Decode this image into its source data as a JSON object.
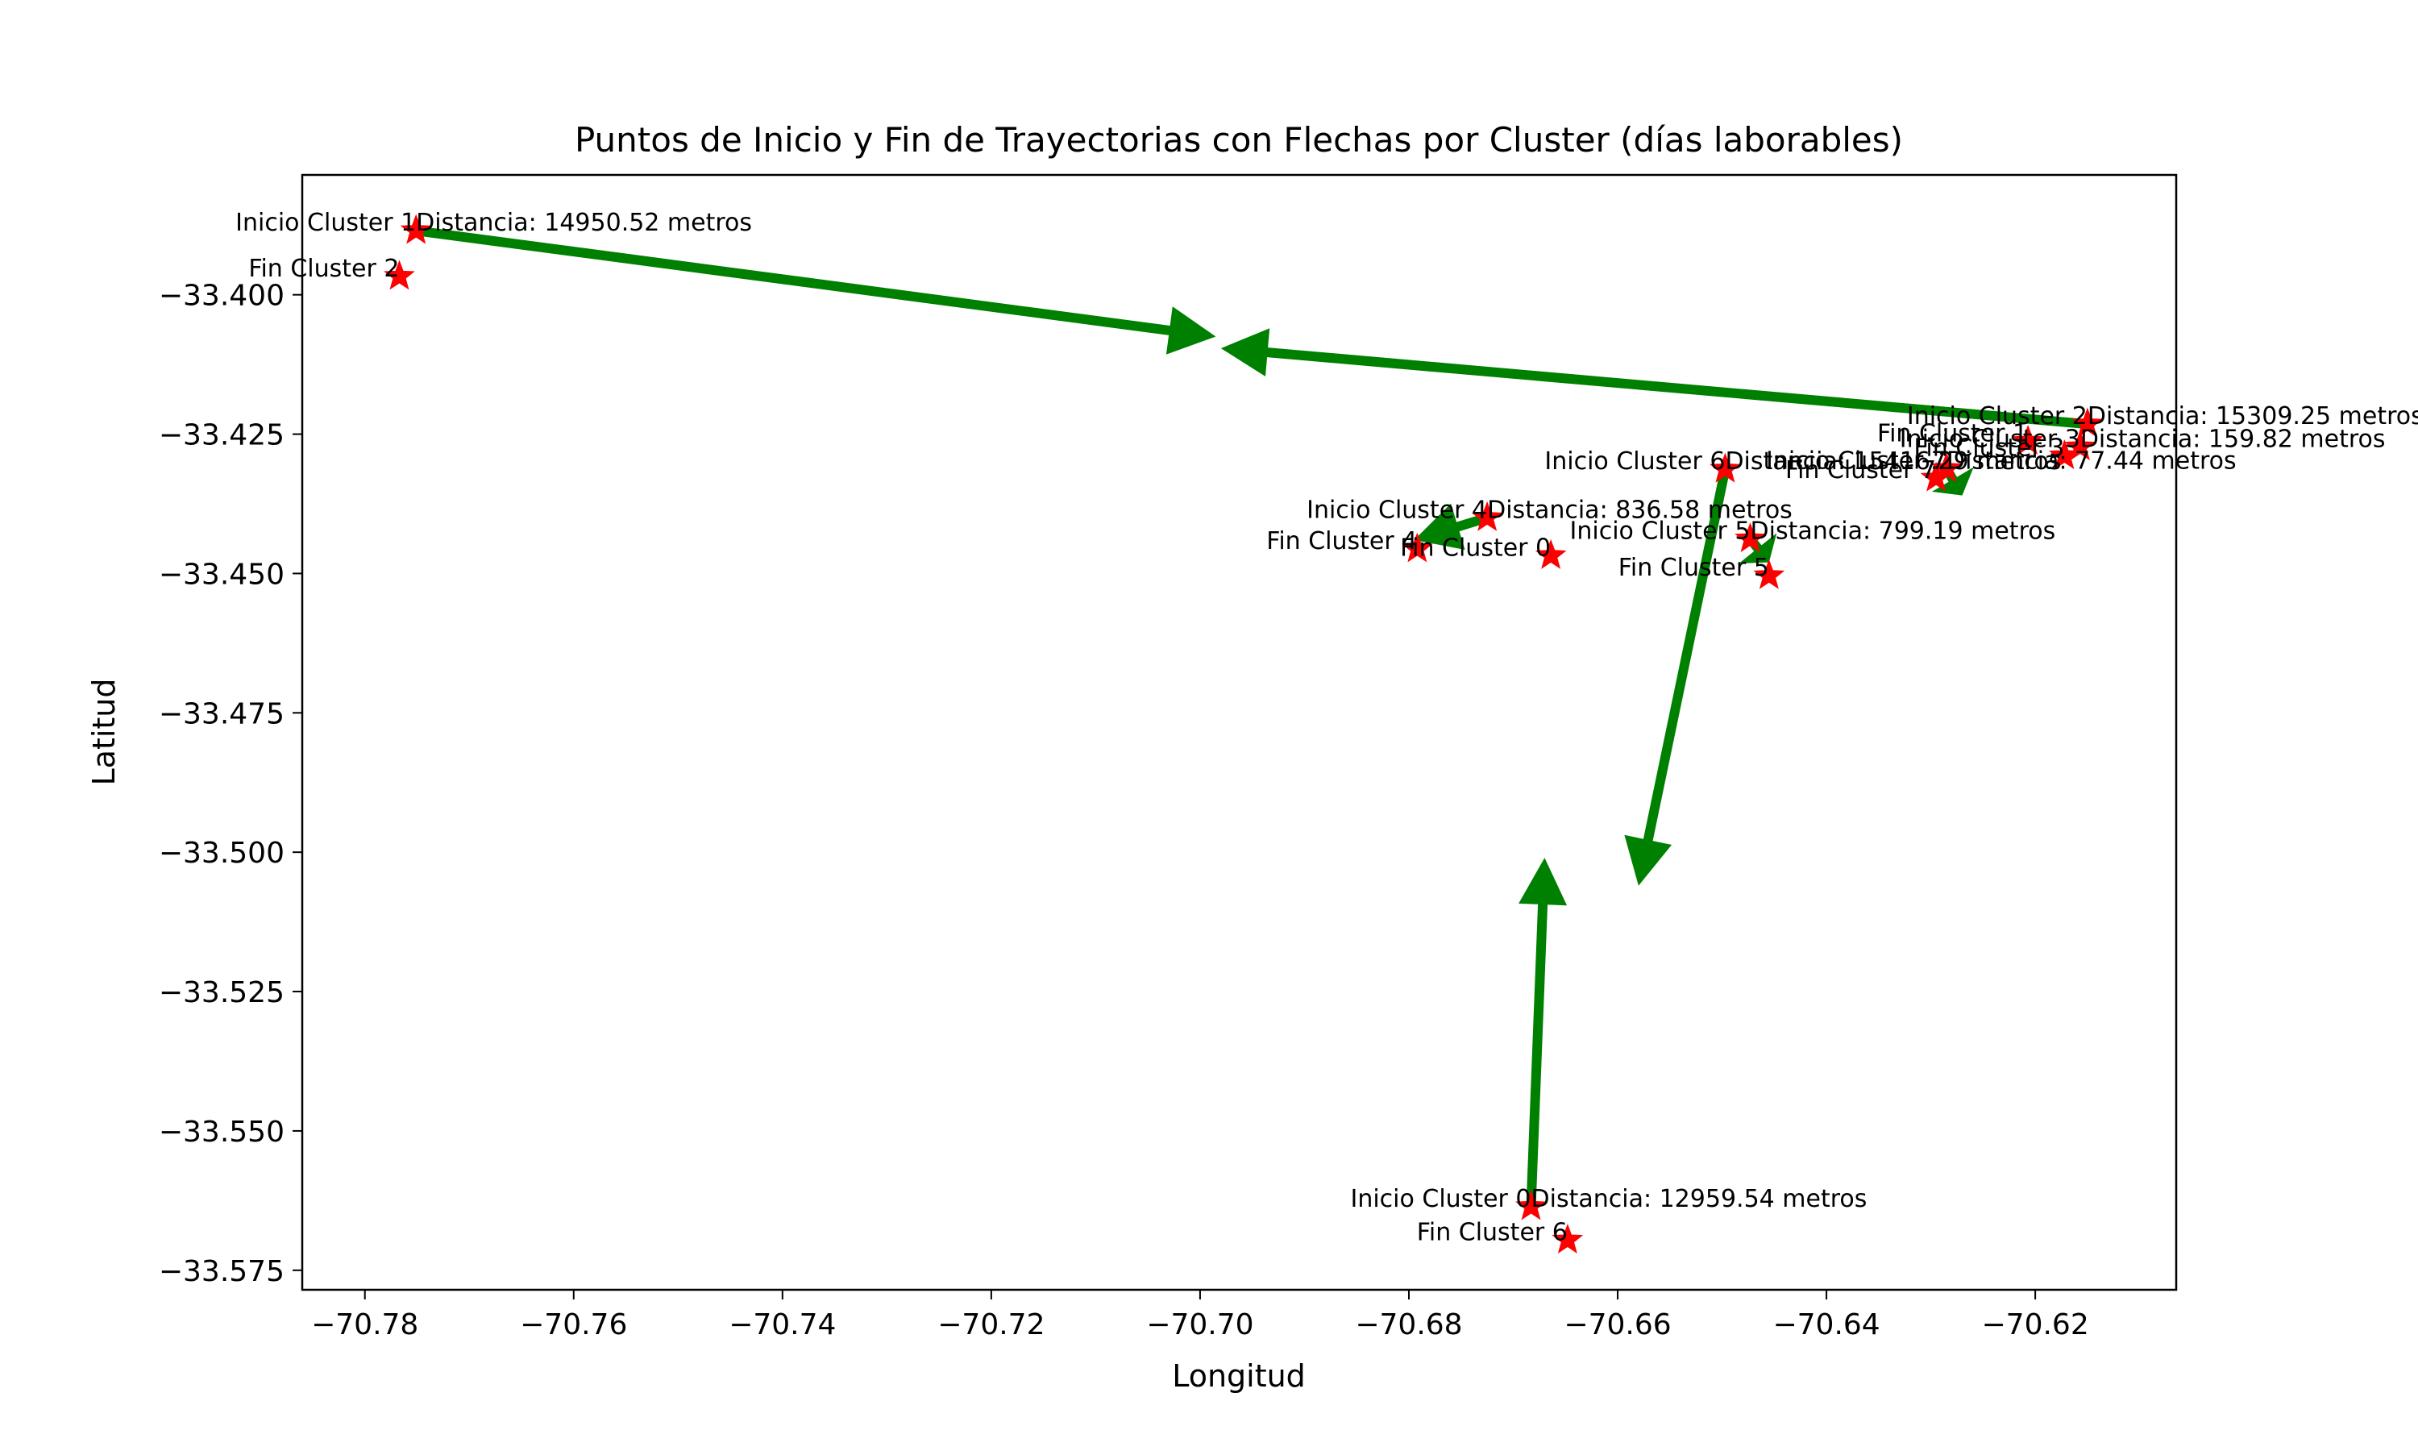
{
  "chart_data": {
    "type": "scatter",
    "title": "Puntos de Inicio y Fin de Trayectorias con Flechas por Cluster (días laborables)",
    "xlabel": "Longitud",
    "ylabel": "Latitud",
    "xlim": [
      -70.786,
      -70.6065
    ],
    "ylim": [
      -33.5785,
      -33.3785
    ],
    "xticks": [
      -70.78,
      -70.76,
      -70.74,
      -70.72,
      -70.7,
      -70.68,
      -70.66,
      -70.64,
      -70.62
    ],
    "xtick_labels": [
      "−70.78",
      "−70.76",
      "−70.74",
      "−70.72",
      "−70.70",
      "−70.68",
      "−70.66",
      "−70.64",
      "−70.62"
    ],
    "yticks": [
      -33.4,
      -33.425,
      -33.45,
      -33.475,
      -33.5,
      -33.525,
      -33.55,
      -33.575
    ],
    "ytick_labels": [
      "−33.400",
      "−33.425",
      "−33.450",
      "−33.475",
      "−33.500",
      "−33.525",
      "−33.550",
      "−33.575"
    ],
    "grid": false,
    "marker_color": "#ff0000",
    "arrow_color": "#008000",
    "points": [
      {
        "label": "Inicio Cluster 1",
        "x": -70.7751,
        "y": -33.3885
      },
      {
        "label": "Fin Cluster 2",
        "x": -70.7767,
        "y": -33.3967
      },
      {
        "label": "Inicio Cluster 2",
        "x": -70.615,
        "y": -33.4232
      },
      {
        "label": "Fin Cluster 1",
        "x": -70.6207,
        "y": -33.4263
      },
      {
        "label": "Inicio Cluster 3",
        "x": -70.6157,
        "y": -33.4273
      },
      {
        "label": "Fin Cluster 3",
        "x": -70.6172,
        "y": -33.4289
      },
      {
        "label": "Inicio Cluster 7",
        "x": -70.6285,
        "y": -33.4312
      },
      {
        "label": "Fin Cluster 7",
        "x": -70.6295,
        "y": -33.4329
      },
      {
        "label": "Inicio Cluster 6",
        "x": -70.6497,
        "y": -33.4313
      },
      {
        "label": "Inicio Cluster 4",
        "x": -70.6725,
        "y": -33.44
      },
      {
        "label": "Fin Cluster 4",
        "x": -70.6792,
        "y": -33.4456
      },
      {
        "label": "Fin Cluster 0",
        "x": -70.6664,
        "y": -33.4468
      },
      {
        "label": "Inicio Cluster 5",
        "x": -70.6473,
        "y": -33.4438
      },
      {
        "label": "Fin Cluster 5",
        "x": -70.6455,
        "y": -33.4504
      },
      {
        "label": "Inicio Cluster 0",
        "x": -70.6683,
        "y": -33.5636
      },
      {
        "label": "Fin Cluster 6",
        "x": -70.6648,
        "y": -33.5696
      }
    ],
    "arrows": [
      {
        "x0": -70.7751,
        "y0": -33.3885,
        "x1": -70.6985,
        "y1": -33.4075
      },
      {
        "x0": -70.615,
        "y0": -33.4232,
        "x1": -70.698,
        "y1": -33.4096
      },
      {
        "x0": -70.6497,
        "y0": -33.4313,
        "x1": -70.658,
        "y1": -33.506
      },
      {
        "x0": -70.6683,
        "y0": -33.5636,
        "x1": -70.667,
        "y1": -33.501
      },
      {
        "x0": -70.6725,
        "y0": -33.44,
        "x1": -70.6795,
        "y1": -33.444
      },
      {
        "x0": -70.6473,
        "y0": -33.4438,
        "x1": -70.6455,
        "y1": -33.448
      },
      {
        "x0": -70.6285,
        "y0": -33.4312,
        "x1": -70.627,
        "y1": -33.436
      }
    ],
    "annotations": [
      {
        "text": "Inicio Cluster 1",
        "x": -70.7751,
        "y": -33.3885,
        "anchor": "end"
      },
      {
        "text": "Distancia: 14950.52 metros",
        "x": -70.7751,
        "y": -33.3885,
        "anchor": "start"
      },
      {
        "text": "Fin Cluster 2",
        "x": -70.7767,
        "y": -33.3967,
        "anchor": "end"
      },
      {
        "text": "Inicio Cluster 2",
        "x": -70.615,
        "y": -33.4232,
        "anchor": "end"
      },
      {
        "text": "Distancia: 15309.25 metros",
        "x": -70.615,
        "y": -33.4232,
        "anchor": "start"
      },
      {
        "text": "Fin Cluster 1",
        "x": -70.6207,
        "y": -33.4263,
        "anchor": "end"
      },
      {
        "text": "Inicio Cluster 3",
        "x": -70.6157,
        "y": -33.4273,
        "anchor": "end"
      },
      {
        "text": "Distancia: 159.82 metros",
        "x": -70.6157,
        "y": -33.4273,
        "anchor": "start"
      },
      {
        "text": "Fin Cluster 3",
        "x": -70.6172,
        "y": -33.4289,
        "anchor": "end"
      },
      {
        "text": "Inicio Cluster 7",
        "x": -70.6285,
        "y": -33.4312,
        "anchor": "end"
      },
      {
        "text": "Distancia: 77.44 metros",
        "x": -70.6285,
        "y": -33.4312,
        "anchor": "start"
      },
      {
        "text": "Fin Cluster 7",
        "x": -70.6295,
        "y": -33.4329,
        "anchor": "end"
      },
      {
        "text": "Inicio Cluster 6",
        "x": -70.6497,
        "y": -33.4313,
        "anchor": "end"
      },
      {
        "text": "Distancia: 15416.29 metros",
        "x": -70.6497,
        "y": -33.4313,
        "anchor": "start"
      },
      {
        "text": "Inicio Cluster 4",
        "x": -70.6725,
        "y": -33.44,
        "anchor": "end"
      },
      {
        "text": "Distancia: 836.58 metros",
        "x": -70.6725,
        "y": -33.44,
        "anchor": "start"
      },
      {
        "text": "Fin Cluster 4",
        "x": -70.6792,
        "y": -33.4456,
        "anchor": "end"
      },
      {
        "text": "Fin Cluster 0",
        "x": -70.6664,
        "y": -33.4468,
        "anchor": "end"
      },
      {
        "text": "Inicio Cluster 5",
        "x": -70.6473,
        "y": -33.4438,
        "anchor": "end"
      },
      {
        "text": "Distancia: 799.19 metros",
        "x": -70.6473,
        "y": -33.4438,
        "anchor": "start"
      },
      {
        "text": "Fin Cluster 5",
        "x": -70.6455,
        "y": -33.4504,
        "anchor": "end"
      },
      {
        "text": "Inicio Cluster 0",
        "x": -70.6683,
        "y": -33.5636,
        "anchor": "end"
      },
      {
        "text": "Distancia: 12959.54 metros",
        "x": -70.6683,
        "y": -33.5636,
        "anchor": "start"
      },
      {
        "text": "Fin Cluster 6",
        "x": -70.6648,
        "y": -33.5696,
        "anchor": "end"
      }
    ]
  }
}
